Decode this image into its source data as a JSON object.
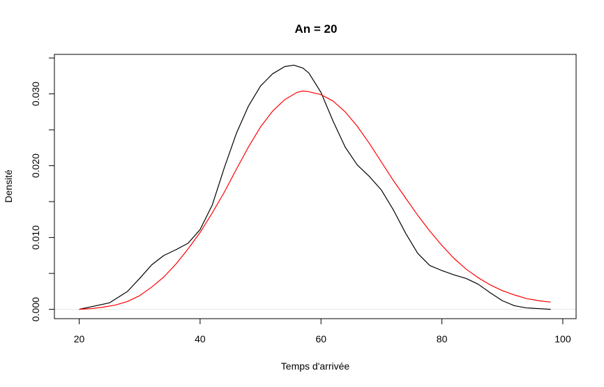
{
  "chart_data": {
    "type": "line",
    "title": "An = 20",
    "xlabel": "Temps d'arrivée",
    "ylabel": "Densité",
    "xlim": [
      15.9,
      102.2
    ],
    "ylim": [
      -0.0013,
      0.0355
    ],
    "x_ticks": [
      20,
      40,
      60,
      80,
      100
    ],
    "x_tick_labels": [
      "20",
      "40",
      "60",
      "80",
      "100"
    ],
    "y_ticks": [
      0,
      0.005,
      0.01,
      0.015,
      0.02,
      0.025,
      0.03,
      0.035
    ],
    "y_tick_labels": [
      "0.000",
      "",
      "0.010",
      "",
      "0.020",
      "",
      "0.030",
      ""
    ],
    "grid": false,
    "baseline": {
      "y": 0,
      "color": "#e6e6e6"
    },
    "series": [
      {
        "color": "#000000",
        "x": [
          20,
          25,
          28,
          30,
          32,
          34,
          36,
          38,
          40,
          42,
          44,
          46,
          48,
          50,
          52,
          54,
          55.5,
          57,
          58,
          60,
          62,
          64,
          66,
          68,
          70,
          72,
          74,
          76,
          78,
          80,
          82,
          84,
          86,
          88,
          90,
          92,
          94,
          96,
          98
        ],
        "y": [
          0.0,
          0.0009,
          0.0025,
          0.0043,
          0.0062,
          0.0075,
          0.0083,
          0.0092,
          0.0111,
          0.0145,
          0.0197,
          0.0245,
          0.0283,
          0.0311,
          0.0328,
          0.0338,
          0.034,
          0.0336,
          0.0329,
          0.0302,
          0.0262,
          0.0226,
          0.0201,
          0.0185,
          0.0166,
          0.0138,
          0.0106,
          0.0078,
          0.0061,
          0.0054,
          0.0048,
          0.0043,
          0.0035,
          0.0023,
          0.0012,
          0.0005,
          0.0002,
          0.0001,
          0.0
        ]
      },
      {
        "color": "#ff0000",
        "x": [
          20,
          22,
          24,
          26,
          28,
          30,
          32,
          34,
          36,
          38,
          40,
          42,
          44,
          46,
          48,
          50,
          52,
          54,
          56,
          57,
          58,
          60,
          62,
          64,
          66,
          68,
          70,
          72,
          74,
          76,
          78,
          80,
          82,
          84,
          86,
          88,
          90,
          92,
          94,
          96,
          98
        ],
        "y": [
          0.0,
          0.0001,
          0.0003,
          0.0006,
          0.0011,
          0.0019,
          0.0031,
          0.0045,
          0.0063,
          0.0084,
          0.0107,
          0.0134,
          0.0163,
          0.0195,
          0.0226,
          0.0254,
          0.0276,
          0.0292,
          0.0302,
          0.0304,
          0.0303,
          0.0299,
          0.029,
          0.0275,
          0.0255,
          0.0231,
          0.0205,
          0.0179,
          0.0155,
          0.0131,
          0.0109,
          0.0089,
          0.0071,
          0.0056,
          0.0044,
          0.0034,
          0.0026,
          0.002,
          0.0015,
          0.0012,
          0.001
        ]
      }
    ]
  }
}
